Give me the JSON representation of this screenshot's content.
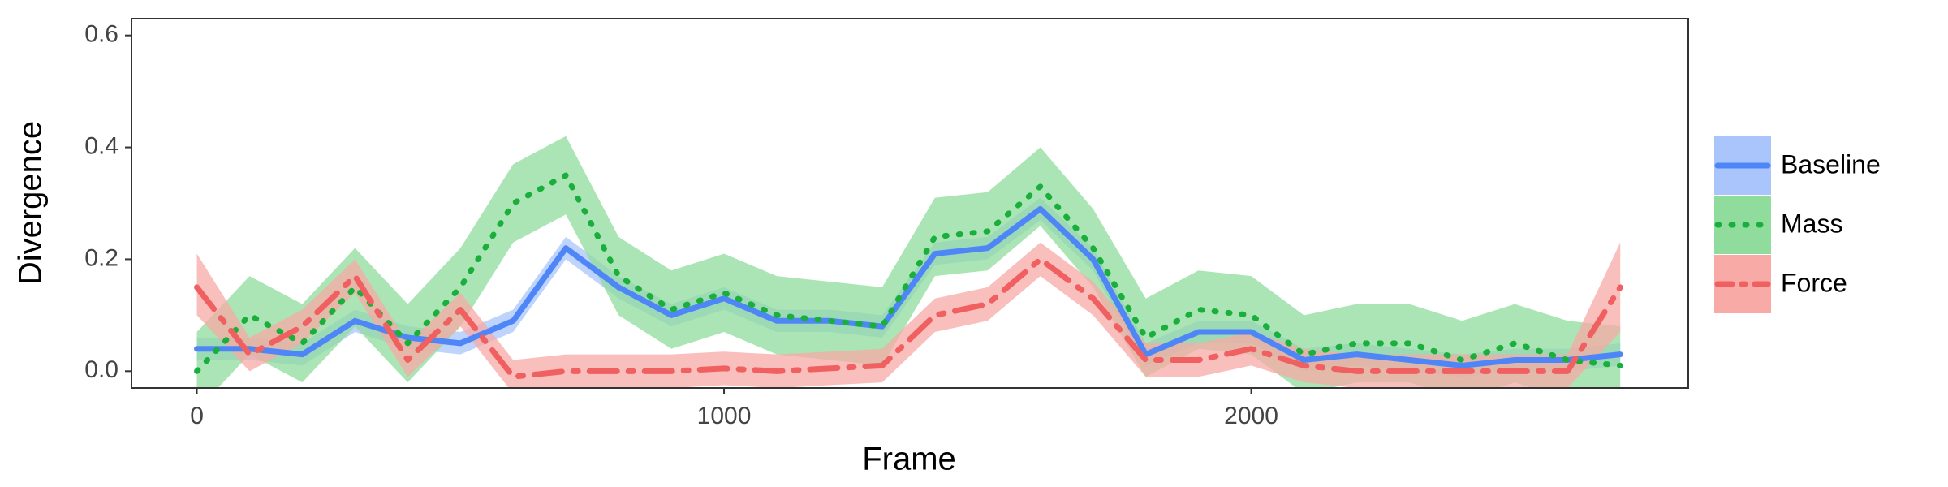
{
  "chart_data": {
    "type": "line",
    "x_label": "Frame",
    "y_label": "Divergence",
    "x": [
      0,
      100,
      200,
      300,
      400,
      500,
      600,
      700,
      800,
      900,
      1000,
      1100,
      1200,
      1300,
      1400,
      1500,
      1600,
      1700,
      1800,
      1900,
      2000,
      2100,
      2200,
      2300,
      2400,
      2500,
      2600,
      2700
    ],
    "xlim": [
      -124,
      2829
    ],
    "xticks": [
      0,
      1000,
      2000
    ],
    "ylim": [
      -0.03,
      0.63
    ],
    "yticks": [
      {
        "value": 0,
        "label": "0.0"
      },
      0.2,
      0.4,
      0.6
    ],
    "grid": false,
    "legend": "right",
    "series": [
      {
        "name": "Baseline",
        "color": "#4f86f7",
        "band_color": "#a9c5fb",
        "style": "solid",
        "values": [
          0.04,
          0.04,
          0.03,
          0.09,
          0.06,
          0.05,
          0.09,
          0.22,
          0.15,
          0.1,
          0.13,
          0.09,
          0.09,
          0.08,
          0.21,
          0.22,
          0.29,
          0.2,
          0.03,
          0.07,
          0.07,
          0.02,
          0.03,
          0.02,
          0.01,
          0.02,
          0.02,
          0.03
        ],
        "lower": [
          0.02,
          0.02,
          0.01,
          0.07,
          0.04,
          0.03,
          0.07,
          0.2,
          0.13,
          0.08,
          0.11,
          0.07,
          0.07,
          0.06,
          0.19,
          0.2,
          0.27,
          0.18,
          0.01,
          0.05,
          0.05,
          0.0,
          0.01,
          0.0,
          -0.01,
          0.0,
          0.0,
          0.01
        ],
        "upper": [
          0.06,
          0.06,
          0.05,
          0.11,
          0.08,
          0.07,
          0.11,
          0.24,
          0.17,
          0.12,
          0.15,
          0.11,
          0.11,
          0.1,
          0.23,
          0.24,
          0.31,
          0.22,
          0.05,
          0.09,
          0.09,
          0.04,
          0.05,
          0.04,
          0.03,
          0.04,
          0.04,
          0.05
        ]
      },
      {
        "name": "Mass",
        "color": "#1aaf3c",
        "band_color": "#8fdc9c",
        "style": "dotted",
        "values": [
          0.0,
          0.1,
          0.05,
          0.15,
          0.05,
          0.15,
          0.3,
          0.35,
          0.17,
          0.11,
          0.14,
          0.1,
          0.09,
          0.08,
          0.24,
          0.25,
          0.33,
          0.22,
          0.06,
          0.11,
          0.1,
          0.03,
          0.05,
          0.05,
          0.02,
          0.05,
          0.02,
          0.01
        ],
        "lower": [
          -0.07,
          0.03,
          -0.02,
          0.08,
          -0.02,
          0.08,
          0.23,
          0.28,
          0.1,
          0.04,
          0.07,
          0.03,
          0.02,
          0.01,
          0.17,
          0.18,
          0.26,
          0.15,
          -0.01,
          0.04,
          0.03,
          -0.04,
          -0.02,
          -0.02,
          -0.05,
          -0.02,
          -0.05,
          -0.06
        ],
        "upper": [
          0.07,
          0.17,
          0.12,
          0.22,
          0.12,
          0.22,
          0.37,
          0.42,
          0.24,
          0.18,
          0.21,
          0.17,
          0.16,
          0.15,
          0.31,
          0.32,
          0.4,
          0.29,
          0.13,
          0.18,
          0.17,
          0.1,
          0.12,
          0.12,
          0.09,
          0.12,
          0.09,
          0.08
        ]
      },
      {
        "name": "Force",
        "color": "#f06060",
        "band_color": "#f7aaa6",
        "style": "dashdot",
        "values": [
          0.15,
          0.03,
          0.08,
          0.17,
          0.02,
          0.11,
          -0.01,
          0.0,
          0.0,
          0.0,
          0.005,
          0.0,
          0.005,
          0.01,
          0.1,
          0.12,
          0.2,
          0.13,
          0.02,
          0.02,
          0.04,
          0.01,
          0.0,
          0.0,
          0.0,
          0.0,
          0.0,
          0.15
        ],
        "lower": [
          0.1,
          0.0,
          0.05,
          0.14,
          -0.01,
          0.08,
          -0.04,
          -0.03,
          -0.03,
          -0.03,
          -0.025,
          -0.03,
          -0.025,
          -0.02,
          0.07,
          0.09,
          0.17,
          0.1,
          -0.01,
          -0.01,
          0.01,
          -0.02,
          -0.03,
          -0.03,
          -0.03,
          -0.03,
          -0.03,
          0.07
        ],
        "upper": [
          0.21,
          0.06,
          0.11,
          0.2,
          0.05,
          0.14,
          0.02,
          0.03,
          0.03,
          0.03,
          0.035,
          0.03,
          0.035,
          0.04,
          0.13,
          0.15,
          0.23,
          0.16,
          0.05,
          0.05,
          0.07,
          0.04,
          0.03,
          0.03,
          0.03,
          0.03,
          0.03,
          0.23
        ]
      }
    ]
  }
}
